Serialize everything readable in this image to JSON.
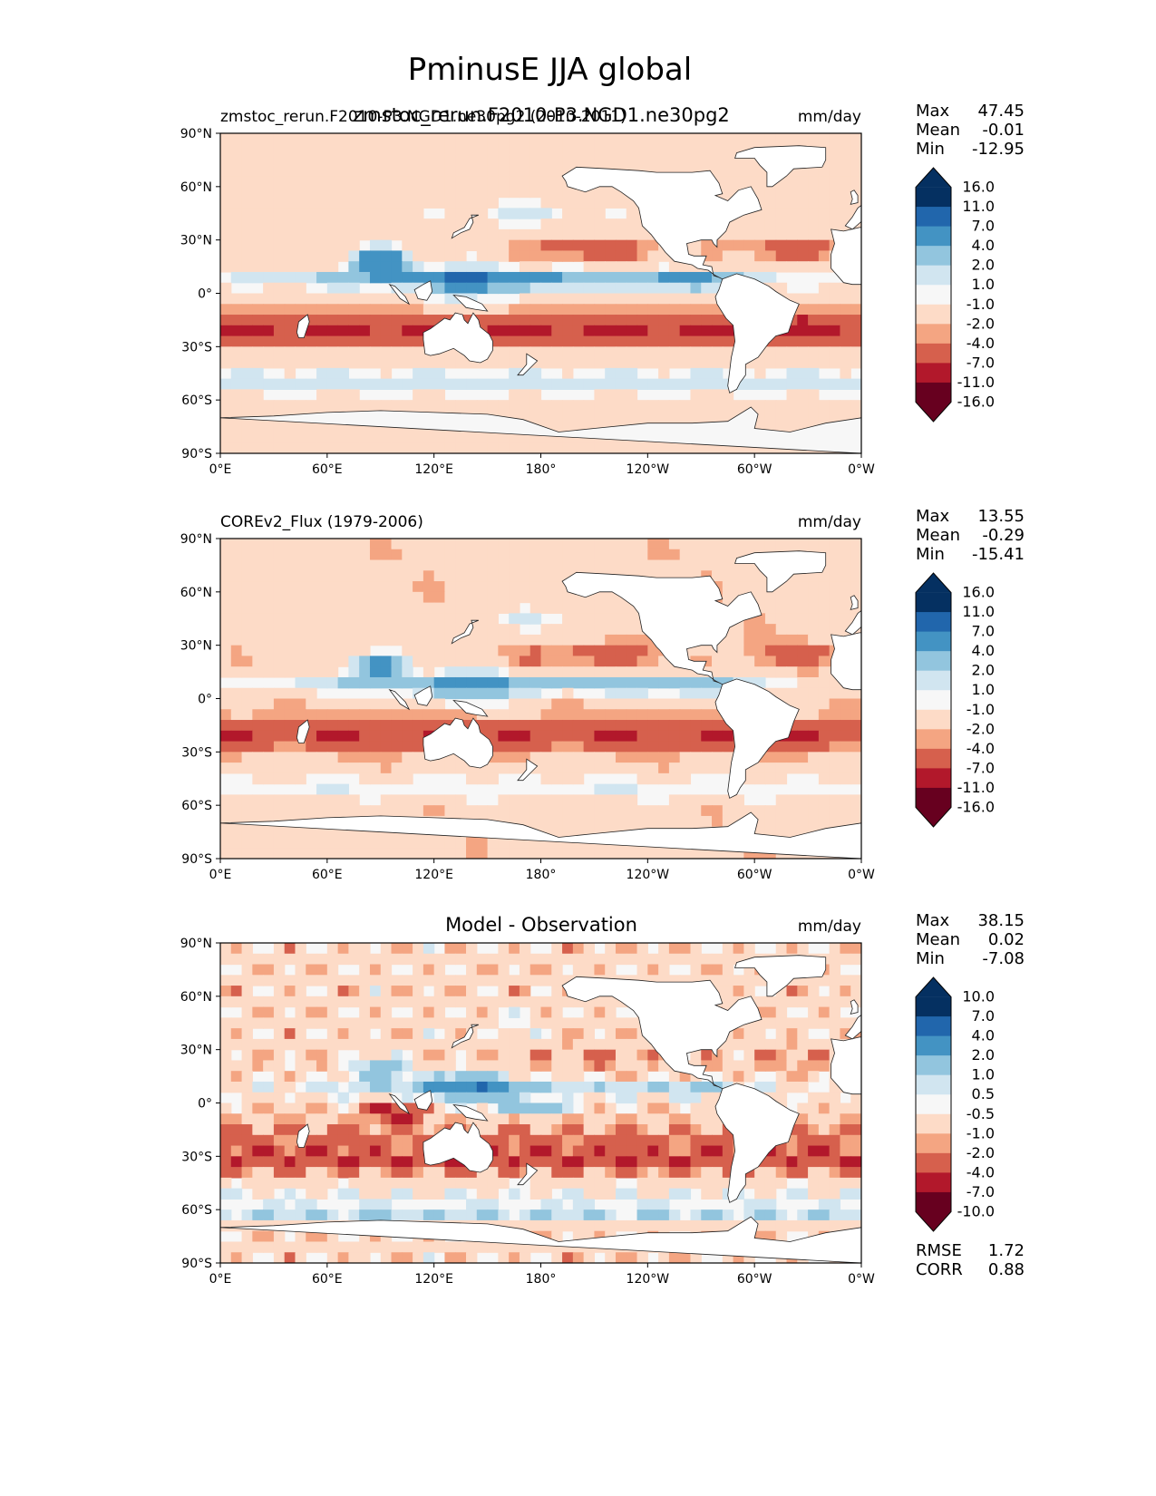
{
  "title": "PminusE JJA global",
  "chart_data": [
    {
      "type": "heatmap",
      "title": "zmstoc_rerun.F2010-P3.NGD1.ne30pg2",
      "left_title": "zmstoc_rerun.F2010-P3.NGD1.ne30pg2 (2010-2011)",
      "units": "mm/day",
      "x_ticks": [
        "0°E",
        "60°E",
        "120°E",
        "180°",
        "120°W",
        "60°W",
        "0°W"
      ],
      "y_ticks": [
        "90°N",
        "60°N",
        "30°N",
        "0°",
        "30°S",
        "60°S",
        "90°S"
      ],
      "stats": {
        "max_label": "Max",
        "max": "47.45",
        "mean_label": "Mean",
        "mean": "-0.01",
        "min_label": "Min",
        "min": "-12.95"
      },
      "colorbar": [
        "16.0",
        "11.0",
        "7.0",
        "4.0",
        "2.0",
        "1.0",
        "-1.0",
        "-2.0",
        "-4.0",
        "-7.0",
        "-11.0",
        "-16.0"
      ]
    },
    {
      "type": "heatmap",
      "title": "",
      "left_title": "COREv2_Flux (1979-2006)",
      "units": "mm/day",
      "x_ticks": [
        "0°E",
        "60°E",
        "120°E",
        "180°",
        "120°W",
        "60°W",
        "0°W"
      ],
      "y_ticks": [
        "90°N",
        "60°N",
        "30°N",
        "0°",
        "30°S",
        "60°S",
        "90°S"
      ],
      "stats": {
        "max_label": "Max",
        "max": "13.55",
        "mean_label": "Mean",
        "mean": "-0.29",
        "min_label": "Min",
        "min": "-15.41"
      },
      "colorbar": [
        "16.0",
        "11.0",
        "7.0",
        "4.0",
        "2.0",
        "1.0",
        "-1.0",
        "-2.0",
        "-4.0",
        "-7.0",
        "-11.0",
        "-16.0"
      ]
    },
    {
      "type": "heatmap",
      "title": "Model - Observation",
      "left_title": "",
      "units": "mm/day",
      "x_ticks": [
        "0°E",
        "60°E",
        "120°E",
        "180°",
        "120°W",
        "60°W",
        "0°W"
      ],
      "y_ticks": [
        "90°N",
        "60°N",
        "30°N",
        "0°",
        "30°S",
        "60°S",
        "90°S"
      ],
      "stats": {
        "max_label": "Max",
        "max": "38.15",
        "mean_label": "Mean",
        "mean": "0.02",
        "min_label": "Min",
        "min": "-7.08"
      },
      "colorbar": [
        "10.0",
        "7.0",
        "4.0",
        "2.0",
        "1.0",
        "0.5",
        "-0.5",
        "-1.0",
        "-2.0",
        "-4.0",
        "-7.0",
        "-10.0"
      ],
      "metrics": {
        "rmse_label": "RMSE",
        "rmse": "1.72",
        "corr_label": "CORR",
        "corr": "0.88"
      }
    }
  ],
  "colors": {
    "scale": [
      "#053061",
      "#2166ac",
      "#4393c3",
      "#92c5de",
      "#d1e5f0",
      "#f7f7f7",
      "#fddbc7",
      "#f4a582",
      "#d6604d",
      "#b2182b",
      "#67001f"
    ],
    "land": "#ffffff",
    "coast": "#222222"
  }
}
